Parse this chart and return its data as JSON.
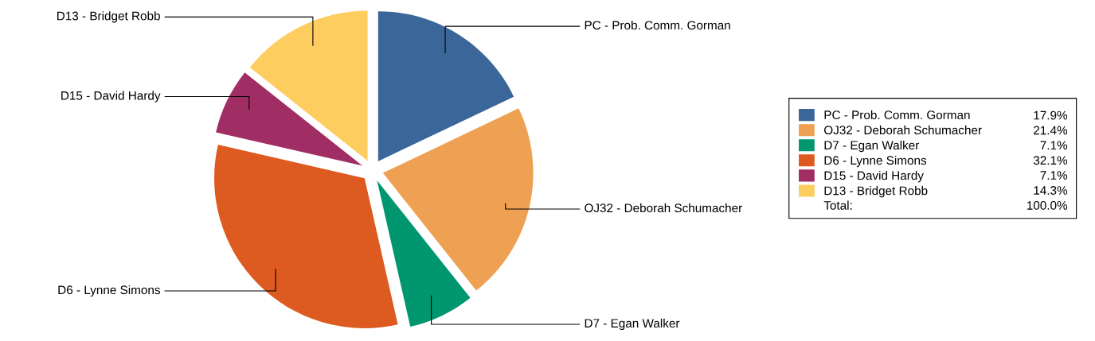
{
  "chart_data": {
    "type": "pie",
    "categories": [
      "PC - Prob. Comm. Gorman",
      "OJ32 - Deborah Schumacher",
      "D7 - Egan Walker",
      "D6 - Lynne Simons",
      "D15 - David Hardy",
      "D13 - Bridget Robb"
    ],
    "values": [
      17.9,
      21.4,
      7.1,
      32.1,
      7.1,
      14.3
    ],
    "colors": [
      "#3a6699",
      "#eea152",
      "#009670",
      "#dd5a20",
      "#a02d63",
      "#fecd60"
    ],
    "value_labels": [
      "17.9%",
      "21.4%",
      "7.1%",
      "32.1%",
      "7.1%",
      "14.3%"
    ],
    "annotations": [
      "Total:",
      "100.0%"
    ],
    "legend": "right"
  }
}
